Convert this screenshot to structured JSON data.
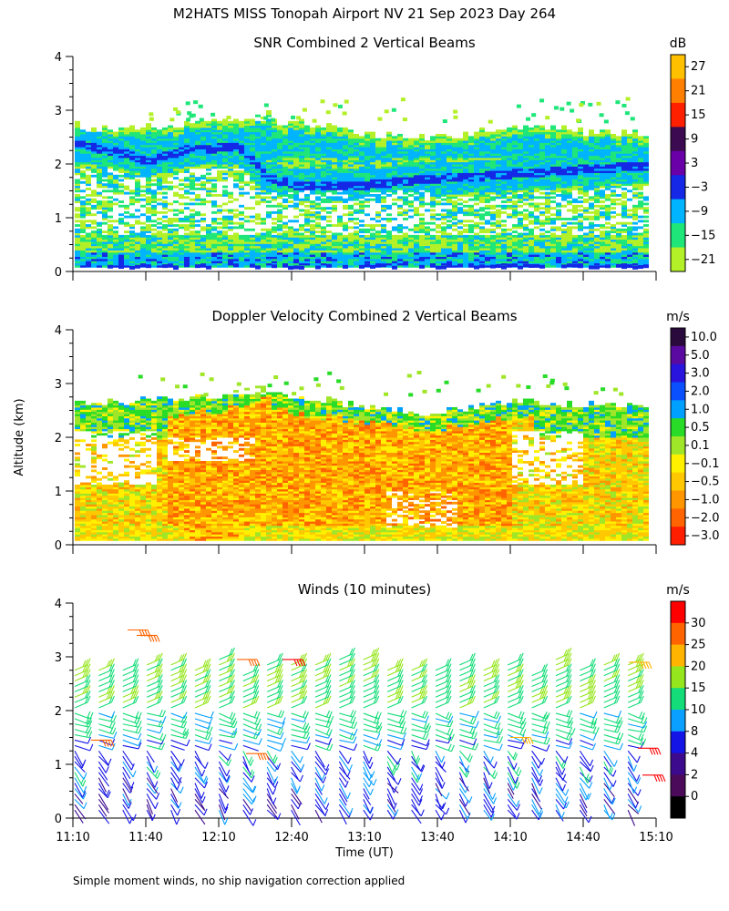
{
  "header": {
    "title": "M2HATS MISS Tonopah Airport NV  21 Sep 2023 Day 264"
  },
  "footnote": "Simple moment winds, no ship navigation correction applied",
  "chart_data": [
    {
      "type": "heatmap",
      "title": "SNR Combined 2 Vertical Beams",
      "ylabel": "",
      "ylim": [
        0,
        4
      ],
      "yticks": [
        "0",
        "1",
        "2",
        "3",
        "4"
      ],
      "colorbar": {
        "unit": "dB",
        "labels": [
          "27",
          "21",
          "15",
          "9",
          "3",
          "−3",
          "−9",
          "−15",
          "−21"
        ],
        "colors": [
          "#ffc000",
          "#ff8000",
          "#ff2000",
          "#3c0a50",
          "#6a00a8",
          "#1428e6",
          "#00b4ff",
          "#1ee678",
          "#b4f028"
        ]
      },
      "layers": [
        {
          "name": "upper boundary layer echo",
          "altitude_km": [
            2.0,
            2.7
          ]
        },
        {
          "name": "low-level echo",
          "altitude_km": [
            0.1,
            0.6
          ]
        }
      ]
    },
    {
      "type": "heatmap",
      "title": "Doppler Velocity Combined 2 Vertical Beams",
      "ylabel": "Altitude (km)",
      "ylim": [
        0,
        4
      ],
      "yticks": [
        "0",
        "1",
        "2",
        "3",
        "4"
      ],
      "colorbar": {
        "unit": "m/s",
        "labels": [
          "10.0",
          "5.0",
          "3.0",
          "2.0",
          "1.0",
          "0.5",
          "0.1",
          "−0.1",
          "−0.5",
          "−1.0",
          "−2.0",
          "−3.0"
        ],
        "colors": [
          "#2a0a3c",
          "#5a0aa0",
          "#2814dc",
          "#0a50ff",
          "#00a0ff",
          "#28dc28",
          "#a0e628",
          "#fff000",
          "#ffc800",
          "#ff9600",
          "#ff6400",
          "#ff1e00"
        ]
      }
    },
    {
      "type": "wind-barbs",
      "title": "Winds (10 minutes)",
      "ylabel": "",
      "ylim": [
        0,
        4
      ],
      "yticks": [
        "0",
        "1",
        "2",
        "3",
        "4"
      ],
      "xlabel": "Time (UT)",
      "xticks": [
        "11:10",
        "11:40",
        "12:10",
        "12:40",
        "13:10",
        "13:40",
        "14:10",
        "14:40",
        "15:10"
      ],
      "colorbar": {
        "unit": "m/s",
        "labels": [
          "30",
          "25",
          "20",
          "15",
          "10",
          "8",
          "4",
          "2",
          "0"
        ],
        "colors": [
          "#ff0000",
          "#ff6400",
          "#ffb400",
          "#96e61e",
          "#14dc78",
          "#0aa0ff",
          "#1414e6",
          "#3c0a8c",
          "#4b0a5a",
          "#000000"
        ]
      },
      "profile_interval_min": 10
    }
  ]
}
